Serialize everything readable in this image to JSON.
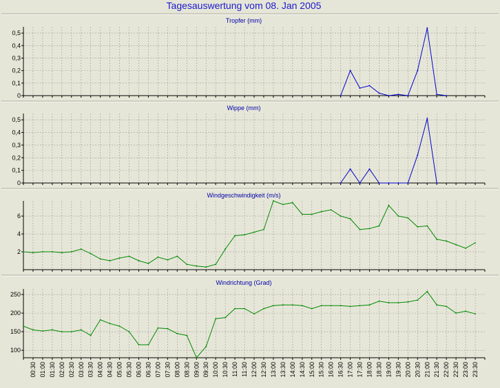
{
  "title": "Tagesauswertung vom 08. Jan 2005",
  "chart_data": [
    {
      "type": "line",
      "title": "Tropfer (mm)",
      "color": "#0000cc",
      "ylim": [
        0,
        0.55
      ],
      "yticks": [
        "0",
        "0,1",
        "0,2",
        "0,3",
        "0,4",
        "0,5"
      ],
      "ytick_values": [
        0,
        0.1,
        0.2,
        0.3,
        0.4,
        0.5
      ],
      "grid": true,
      "x": [
        "16:30",
        "17:00",
        "17:30",
        "18:00",
        "18:30",
        "19:00",
        "19:30",
        "20:00",
        "20:30",
        "21:00",
        "21:30",
        "22:00"
      ],
      "values": [
        0,
        0.2,
        0.06,
        0.08,
        0.02,
        0,
        0.01,
        0,
        0.2,
        0.54,
        0.01,
        0
      ]
    },
    {
      "type": "line",
      "title": "Wippe (mm)",
      "color": "#0000cc",
      "ylim": [
        0,
        0.55
      ],
      "yticks": [
        "0",
        "0,1",
        "0,2",
        "0,3",
        "0,4",
        "0,5"
      ],
      "ytick_values": [
        0,
        0.1,
        0.2,
        0.3,
        0.4,
        0.5
      ],
      "grid": true,
      "x": [
        "16:30",
        "17:00",
        "17:30",
        "18:00",
        "18:30",
        "19:00",
        "19:30",
        "20:00",
        "20:30",
        "21:00",
        "21:30"
      ],
      "values": [
        0,
        0.11,
        0,
        0.11,
        0,
        0,
        0,
        0,
        0.22,
        0.51,
        0
      ]
    },
    {
      "type": "line",
      "title": "Windgeschwindigkeit (m/s)",
      "color": "#008800",
      "ylim": [
        0,
        7.7
      ],
      "yticks": [
        "2",
        "4",
        "6"
      ],
      "ytick_values": [
        2,
        4,
        6
      ],
      "grid": true,
      "x": [
        "00:00",
        "00:30",
        "01:00",
        "01:30",
        "02:00",
        "02:30",
        "03:00",
        "03:30",
        "04:00",
        "04:30",
        "05:00",
        "05:30",
        "06:00",
        "06:30",
        "07:00",
        "07:30",
        "08:00",
        "08:30",
        "09:00",
        "09:30",
        "10:00",
        "10:30",
        "11:00",
        "11:30",
        "12:00",
        "12:30",
        "13:00",
        "13:30",
        "14:00",
        "14:30",
        "15:00",
        "15:30",
        "16:00",
        "16:30",
        "17:00",
        "17:30",
        "18:00",
        "18:30",
        "19:00",
        "19:30",
        "20:00",
        "20:30",
        "21:00",
        "21:30",
        "22:00",
        "22:30",
        "23:00",
        "23:30"
      ],
      "values": [
        2.0,
        1.9,
        2.0,
        2.0,
        1.9,
        2.0,
        2.3,
        1.8,
        1.2,
        1.0,
        1.3,
        1.5,
        1.0,
        0.7,
        1.4,
        1.1,
        1.5,
        0.6,
        0.4,
        0.3,
        0.6,
        2.3,
        3.8,
        3.9,
        4.2,
        4.5,
        7.7,
        7.3,
        7.5,
        6.2,
        6.2,
        6.5,
        6.7,
        6.0,
        5.7,
        4.5,
        4.6,
        4.9,
        7.2,
        6.0,
        5.8,
        4.8,
        4.9,
        3.4,
        3.2,
        2.8,
        2.4,
        3.0
      ]
    },
    {
      "type": "line",
      "title": "Windrichtung (Grad)",
      "color": "#008800",
      "ylim": [
        80,
        265
      ],
      "yticks": [
        "100",
        "150",
        "200",
        "250"
      ],
      "ytick_values": [
        100,
        150,
        200,
        250
      ],
      "grid": true,
      "x": [
        "00:00",
        "00:30",
        "01:00",
        "01:30",
        "02:00",
        "02:30",
        "03:00",
        "03:30",
        "04:00",
        "04:30",
        "05:00",
        "05:30",
        "06:00",
        "06:30",
        "07:00",
        "07:30",
        "08:00",
        "08:30",
        "09:00",
        "09:30",
        "10:00",
        "10:30",
        "11:00",
        "11:30",
        "12:00",
        "12:30",
        "13:00",
        "13:30",
        "14:00",
        "14:30",
        "15:00",
        "15:30",
        "16:00",
        "16:30",
        "17:00",
        "17:30",
        "18:00",
        "18:30",
        "19:00",
        "19:30",
        "20:00",
        "20:30",
        "21:00",
        "21:30",
        "22:00",
        "22:30",
        "23:00",
        "23:30"
      ],
      "values": [
        165,
        155,
        152,
        155,
        150,
        150,
        155,
        140,
        182,
        172,
        165,
        150,
        115,
        115,
        160,
        158,
        145,
        140,
        80,
        110,
        185,
        188,
        212,
        212,
        198,
        212,
        220,
        222,
        222,
        220,
        212,
        220,
        220,
        220,
        218,
        220,
        222,
        232,
        228,
        228,
        230,
        235,
        258,
        222,
        218,
        200,
        205,
        198
      ]
    }
  ],
  "xticks": [
    "00:30",
    "01:00",
    "01:30",
    "02:00",
    "02:30",
    "03:00",
    "03:30",
    "04:00",
    "04:30",
    "05:00",
    "05:30",
    "06:00",
    "06:30",
    "07:00",
    "07:30",
    "08:00",
    "08:30",
    "09:00",
    "09:30",
    "10:00",
    "10:30",
    "11:00",
    "11:30",
    "12:00",
    "12:30",
    "13:00",
    "13:30",
    "14:00",
    "14:30",
    "15:00",
    "15:30",
    "16:00",
    "16:30",
    "17:00",
    "17:30",
    "18:00",
    "18:30",
    "19:00",
    "19:30",
    "20:00",
    "20:30",
    "21:00",
    "21:30",
    "22:00",
    "22:30",
    "23:00",
    "23:30"
  ]
}
